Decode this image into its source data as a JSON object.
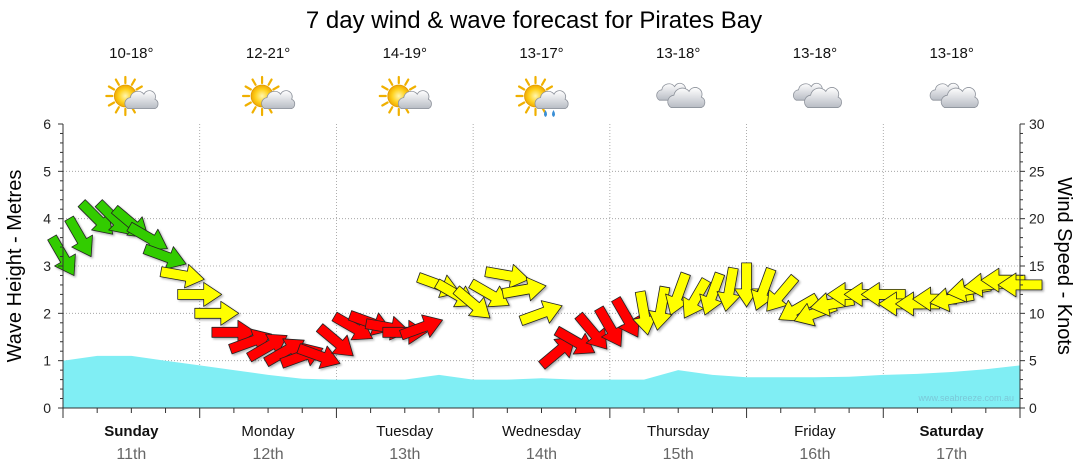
{
  "page": {
    "title": "7 day wind & wave forecast for Pirates Bay"
  },
  "days": [
    {
      "name": "Sunday",
      "date": "11th",
      "temp": "10-18°",
      "icon": "sun-cloud-icon",
      "bold": true
    },
    {
      "name": "Monday",
      "date": "12th",
      "temp": "12-21°",
      "icon": "sun-cloud-icon",
      "bold": false
    },
    {
      "name": "Tuesday",
      "date": "13th",
      "temp": "14-19°",
      "icon": "sun-cloud-icon",
      "bold": false
    },
    {
      "name": "Wednesday",
      "date": "14th",
      "temp": "13-17°",
      "icon": "sun-cloud-rain-icon",
      "bold": false
    },
    {
      "name": "Thursday",
      "date": "15th",
      "temp": "13-18°",
      "icon": "cloud-icon",
      "bold": false
    },
    {
      "name": "Friday",
      "date": "16th",
      "temp": "13-18°",
      "icon": "cloud-icon",
      "bold": false
    },
    {
      "name": "Saturday",
      "date": "17th",
      "temp": "13-18°",
      "icon": "cloud-icon",
      "bold": true
    }
  ],
  "watermark": "www.seabreeze.com.au",
  "colors": {
    "wave_fill": "#80eef4",
    "wind_light": "#33cc00",
    "wind_moderate": "#ffff00",
    "wind_strong": "#ff0000",
    "grid": "#999999"
  },
  "chart_data": {
    "type": "area",
    "xlabel": "",
    "y_left_label": "Wave Height - Metres",
    "y_right_label": "Wind Speed - Knots",
    "y_left_lim": [
      0,
      6
    ],
    "y_right_lim": [
      0,
      30
    ],
    "y_left_ticks": [
      "0",
      "1",
      "2",
      "3",
      "4",
      "5",
      "6"
    ],
    "y_right_ticks": [
      "0",
      "5",
      "10",
      "15",
      "20",
      "25",
      "30"
    ],
    "x_unit": "hours from Sunday 11th 00:00",
    "grid": true,
    "series": [
      {
        "name": "Wave Height - Metres",
        "kind": "area",
        "x": [
          0,
          6,
          12,
          18,
          24,
          30,
          36,
          42,
          48,
          54,
          60,
          66,
          72,
          78,
          84,
          90,
          96,
          102,
          108,
          114,
          120,
          126,
          132,
          138,
          144,
          150,
          156,
          162,
          168
        ],
        "values": [
          1.0,
          1.1,
          1.1,
          1.0,
          0.9,
          0.8,
          0.7,
          0.62,
          0.6,
          0.6,
          0.6,
          0.7,
          0.6,
          0.6,
          0.63,
          0.6,
          0.6,
          0.6,
          0.8,
          0.7,
          0.65,
          0.65,
          0.65,
          0.66,
          0.7,
          0.72,
          0.76,
          0.82,
          0.9
        ]
      },
      {
        "name": "Wind Speed - Knots",
        "kind": "arrows",
        "x": [
          0,
          3,
          6,
          9,
          12,
          15,
          18,
          21,
          24,
          27,
          30,
          33,
          36,
          39,
          42,
          45,
          48,
          51,
          54,
          57,
          60,
          63,
          66,
          69,
          72,
          75,
          78,
          81,
          84,
          87,
          90,
          93,
          96,
          99,
          102,
          105,
          108,
          111,
          114,
          117,
          120,
          123,
          126,
          129,
          132,
          135,
          138,
          141,
          144,
          147,
          150,
          153,
          156,
          159,
          162,
          165,
          168
        ],
        "values": [
          16,
          18,
          20,
          20,
          19.5,
          18,
          16,
          14,
          12,
          10,
          8,
          7,
          6.5,
          6,
          5.5,
          5.5,
          7,
          8.5,
          9,
          8.5,
          8,
          8.5,
          13,
          12,
          11,
          12,
          14,
          12.5,
          10,
          6,
          7,
          8,
          8.5,
          9.5,
          10,
          10.5,
          12,
          11.5,
          12,
          12.5,
          13,
          12.5,
          12,
          10.5,
          10,
          11,
          12,
          12,
          12,
          11,
          11,
          11.5,
          11.5,
          12.5,
          13,
          13.5,
          13
        ],
        "directions_deg": [
          60,
          60,
          45,
          45,
          40,
          30,
          20,
          10,
          0,
          0,
          0,
          340,
          330,
          330,
          340,
          20,
          40,
          30,
          20,
          10,
          0,
          340,
          20,
          30,
          40,
          30,
          10,
          350,
          340,
          320,
          30,
          50,
          60,
          60,
          80,
          100,
          110,
          120,
          110,
          100,
          90,
          110,
          130,
          150,
          160,
          170,
          180,
          180,
          180,
          180,
          180,
          180,
          170,
          170,
          175,
          180,
          180
        ]
      }
    ]
  }
}
